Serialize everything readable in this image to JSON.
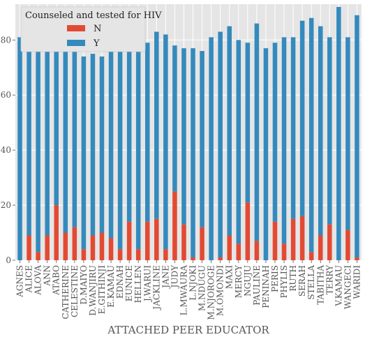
{
  "chart_data": {
    "type": "bar",
    "stacked": true,
    "xlabel": "ATTACHED PEER EDUCATOR",
    "ylabel": "",
    "ylim": [
      0,
      93
    ],
    "yticks": [
      0,
      20,
      40,
      60,
      80
    ],
    "grid": true,
    "legend": {
      "title": "Counseled and tested for HIV",
      "placement": "top-left",
      "entries": [
        "N",
        "Y"
      ]
    },
    "colors": {
      "N": "#E24A33",
      "Y": "#348ABD",
      "background": "#E5E5E5",
      "grid": "#FFFFFF"
    },
    "categories": [
      "AGNES",
      "ALICE",
      "ALOVA",
      "ANN",
      "ATABO",
      "CATHERINE",
      "CELESTINE",
      "D.MAIYO",
      "D.WANJIRU",
      "E.GITHINJI",
      "E.KAMAU",
      "EDNAH",
      "EUNICE",
      "HELLEN",
      "J.WARUI",
      "JACKLINE",
      "JANE",
      "JUDY",
      "L.MWAURA",
      "L.NJOKI",
      "M.NDUGU",
      "M.NJOROGE",
      "M.OMONDI",
      "MAXI",
      "MERCY",
      "NGUJU",
      "PAULINE",
      "PENINAH",
      "PERIS",
      "PHYLIS",
      "RUTH",
      "SERAH",
      "STELLA",
      "TABITHA",
      "TERRY",
      "V.KAMAU",
      "WANGECI",
      "WARIDI"
    ],
    "series": [
      {
        "name": "N",
        "values": [
          0,
          9,
          3,
          9,
          20,
          10,
          12,
          4,
          9,
          10,
          8,
          4,
          14,
          4,
          14,
          15,
          4,
          25,
          13,
          1,
          12,
          0,
          1,
          9,
          6,
          21,
          7,
          0,
          14,
          6,
          15,
          16,
          3,
          9,
          13,
          0,
          11,
          1
        ]
      },
      {
        "name": "Y",
        "values": [
          81,
          76,
          74,
          73,
          68,
          71,
          77,
          70,
          66,
          64,
          71,
          77,
          67,
          84,
          65,
          68,
          78,
          53,
          64,
          76,
          64,
          81,
          82,
          76,
          74,
          58,
          79,
          77,
          65,
          75,
          66,
          71,
          85,
          76,
          68,
          92,
          70,
          88
        ]
      }
    ]
  }
}
